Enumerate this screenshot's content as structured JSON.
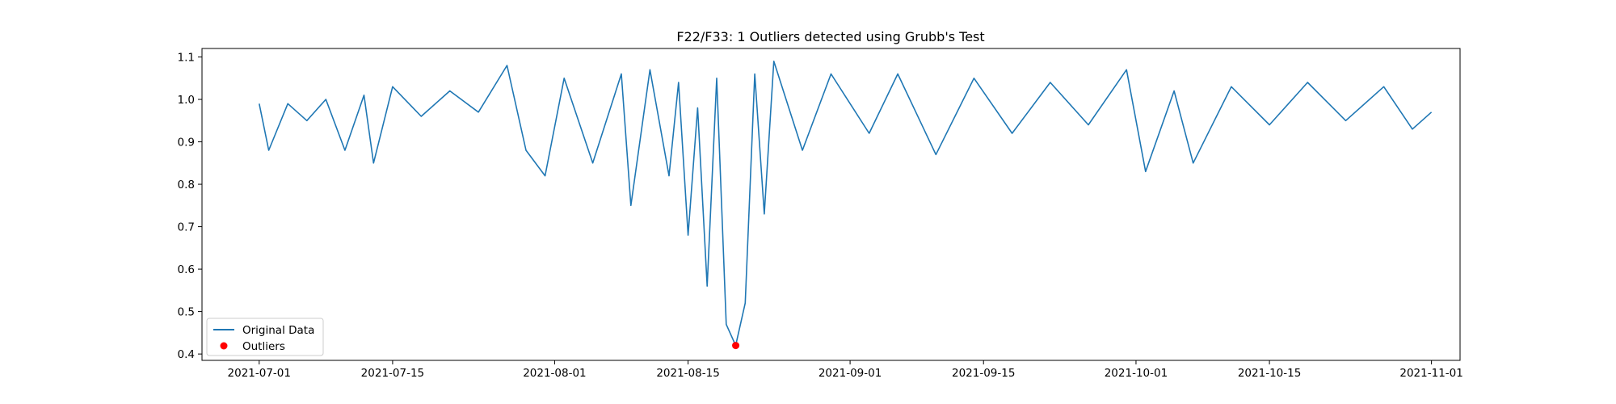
{
  "chart_data": {
    "type": "line",
    "title": "F22/F33: 1 Outliers detected using Grubb's Test",
    "xlabel": "",
    "ylabel": "",
    "xlim": [
      "2021-06-25",
      "2021-11-04"
    ],
    "ylim": [
      0.385,
      1.12
    ],
    "x_ticks": [
      "2021-07-01",
      "2021-07-15",
      "2021-08-01",
      "2021-08-15",
      "2021-09-01",
      "2021-09-15",
      "2021-10-01",
      "2021-10-15",
      "2021-11-01"
    ],
    "y_ticks": [
      "0.4",
      "0.5",
      "0.6",
      "0.7",
      "0.8",
      "0.9",
      "1.0",
      "1.1"
    ],
    "grid": false,
    "legend_position": "lower-left",
    "series": [
      {
        "name": "Original Data",
        "color": "#1f77b4",
        "kind": "line",
        "points": [
          [
            "2021-07-01",
            0.99
          ],
          [
            "2021-07-02",
            0.88
          ],
          [
            "2021-07-04",
            0.99
          ],
          [
            "2021-07-06",
            0.95
          ],
          [
            "2021-07-08",
            1.0
          ],
          [
            "2021-07-10",
            0.88
          ],
          [
            "2021-07-12",
            1.01
          ],
          [
            "2021-07-13",
            0.85
          ],
          [
            "2021-07-15",
            1.03
          ],
          [
            "2021-07-18",
            0.96
          ],
          [
            "2021-07-21",
            1.02
          ],
          [
            "2021-07-24",
            0.97
          ],
          [
            "2021-07-27",
            1.08
          ],
          [
            "2021-07-29",
            0.88
          ],
          [
            "2021-07-31",
            0.82
          ],
          [
            "2021-08-02",
            1.05
          ],
          [
            "2021-08-05",
            0.85
          ],
          [
            "2021-08-08",
            1.06
          ],
          [
            "2021-08-09",
            0.75
          ],
          [
            "2021-08-11",
            1.07
          ],
          [
            "2021-08-13",
            0.82
          ],
          [
            "2021-08-14",
            1.04
          ],
          [
            "2021-08-15",
            0.68
          ],
          [
            "2021-08-16",
            0.98
          ],
          [
            "2021-08-17",
            0.56
          ],
          [
            "2021-08-18",
            1.05
          ],
          [
            "2021-08-19",
            0.47
          ],
          [
            "2021-08-20",
            0.42
          ],
          [
            "2021-08-21",
            0.52
          ],
          [
            "2021-08-22",
            1.06
          ],
          [
            "2021-08-23",
            0.73
          ],
          [
            "2021-08-24",
            1.09
          ],
          [
            "2021-08-27",
            0.88
          ],
          [
            "2021-08-30",
            1.06
          ],
          [
            "2021-09-03",
            0.92
          ],
          [
            "2021-09-06",
            1.06
          ],
          [
            "2021-09-10",
            0.87
          ],
          [
            "2021-09-14",
            1.05
          ],
          [
            "2021-09-18",
            0.92
          ],
          [
            "2021-09-22",
            1.04
          ],
          [
            "2021-09-26",
            0.94
          ],
          [
            "2021-09-30",
            1.07
          ],
          [
            "2021-10-02",
            0.83
          ],
          [
            "2021-10-05",
            1.02
          ],
          [
            "2021-10-07",
            0.85
          ],
          [
            "2021-10-11",
            1.03
          ],
          [
            "2021-10-15",
            0.94
          ],
          [
            "2021-10-19",
            1.04
          ],
          [
            "2021-10-23",
            0.95
          ],
          [
            "2021-10-27",
            1.03
          ],
          [
            "2021-10-30",
            0.93
          ],
          [
            "2021-11-01",
            0.97
          ]
        ]
      },
      {
        "name": "Outliers",
        "color": "#ff0000",
        "kind": "scatter",
        "points": [
          [
            "2021-08-20",
            0.42
          ]
        ]
      }
    ]
  }
}
